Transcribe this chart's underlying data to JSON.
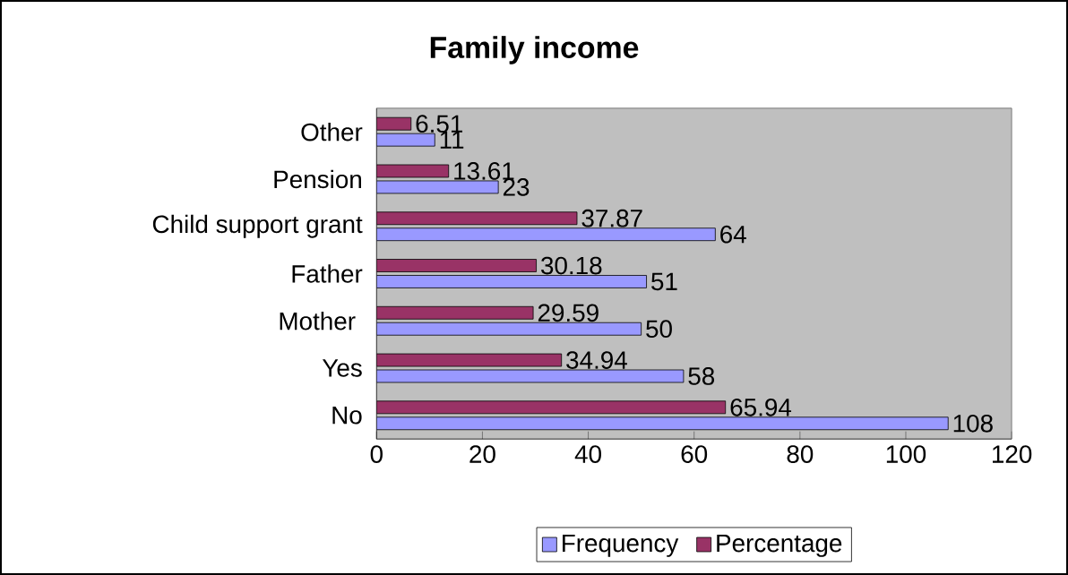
{
  "chart_data": {
    "type": "bar",
    "orientation": "horizontal",
    "title": "Family income",
    "categories": [
      "Other",
      "Pension",
      "Child support grant",
      "Father",
      "Mother ",
      "Yes",
      "No"
    ],
    "series": [
      {
        "name": "Frequency",
        "color": "#9999ff",
        "values": [
          11,
          23,
          64,
          51,
          50,
          58,
          108
        ]
      },
      {
        "name": "Percentage",
        "color": "#993366",
        "values": [
          6.51,
          13.61,
          37.87,
          30.18,
          29.59,
          34.94,
          65.94
        ]
      }
    ],
    "xlim": [
      0,
      120
    ],
    "xticks": [
      0,
      20,
      40,
      60,
      80,
      100,
      120
    ],
    "data_labels": true,
    "legend": "bottom",
    "grid": false
  }
}
